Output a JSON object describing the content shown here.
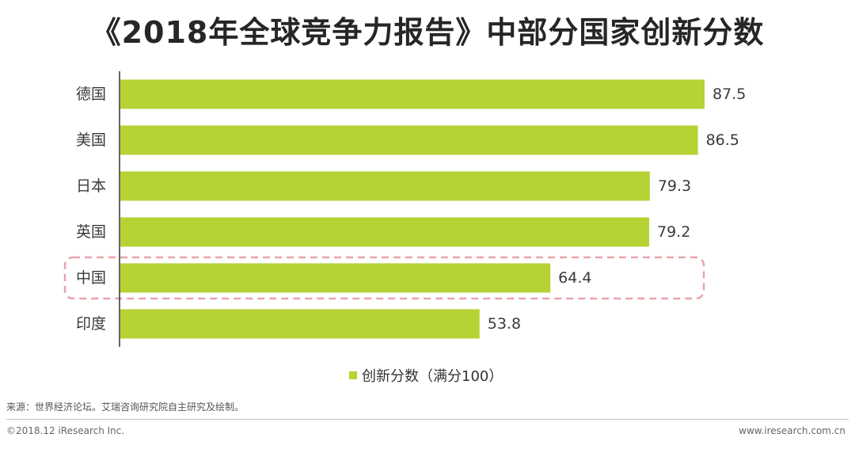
{
  "colors": {
    "bar": "#b5d334",
    "highlight_box": "#e8a4ad",
    "axis": "#333333"
  },
  "chart_data": {
    "type": "bar",
    "orientation": "horizontal",
    "title": "《2018年全球竞争力报告》中部分国家创新分数",
    "categories": [
      "德国",
      "美国",
      "日本",
      "英国",
      "中国",
      "印度"
    ],
    "series": [
      {
        "name": "创新分数（满分100）",
        "values": [
          87.5,
          86.5,
          79.3,
          79.2,
          64.4,
          53.8
        ]
      }
    ],
    "value_labels": [
      "87.5",
      "86.5",
      "79.3",
      "79.2",
      "64.4",
      "53.8"
    ],
    "highlighted_category": "中国",
    "legend_position": "bottom",
    "grid": false
  },
  "legend": {
    "label": "创新分数（满分100）"
  },
  "source": "来源：世界经济论坛。艾瑞咨询研究院自主研究及绘制。",
  "footer": {
    "copyright": "©2018.12 iResearch Inc.",
    "website": "www.iresearch.com.cn"
  }
}
